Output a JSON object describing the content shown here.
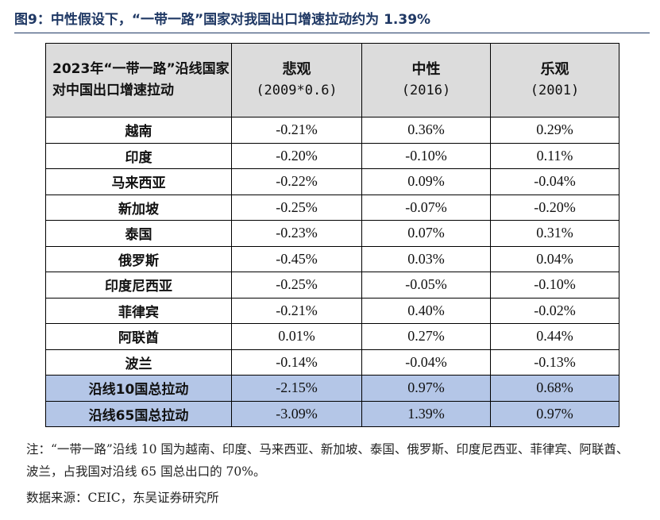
{
  "figure": {
    "title": "图9：中性假设下，“一带一路”国家对我国出口增速拉动约为 1.39%"
  },
  "table": {
    "header": {
      "col0": "2023年“一带一路”沿线国家对中国出口增速拉动",
      "col1_name": "悲观",
      "col1_sub": "(2009*0.6)",
      "col2_name": "中性",
      "col2_sub": "(2016)",
      "col3_name": "乐观",
      "col3_sub": "(2001)"
    },
    "rows": [
      {
        "country": "越南",
        "pessimistic": "-0.21%",
        "neutral": "0.36%",
        "optimistic": "0.29%"
      },
      {
        "country": "印度",
        "pessimistic": "-0.20%",
        "neutral": "-0.10%",
        "optimistic": "0.11%"
      },
      {
        "country": "马来西亚",
        "pessimistic": "-0.22%",
        "neutral": "0.09%",
        "optimistic": "-0.04%"
      },
      {
        "country": "新加坡",
        "pessimistic": "-0.25%",
        "neutral": "-0.07%",
        "optimistic": "-0.20%"
      },
      {
        "country": "泰国",
        "pessimistic": "-0.23%",
        "neutral": "0.07%",
        "optimistic": "0.31%"
      },
      {
        "country": "俄罗斯",
        "pessimistic": "-0.45%",
        "neutral": "0.03%",
        "optimistic": "0.04%"
      },
      {
        "country": "印度尼西亚",
        "pessimistic": "-0.25%",
        "neutral": "-0.05%",
        "optimistic": "-0.10%"
      },
      {
        "country": "菲律宾",
        "pessimistic": "-0.21%",
        "neutral": "0.40%",
        "optimistic": "-0.02%"
      },
      {
        "country": "阿联酋",
        "pessimistic": "0.01%",
        "neutral": "0.27%",
        "optimistic": "0.44%"
      },
      {
        "country": "波兰",
        "pessimistic": "-0.14%",
        "neutral": "-0.04%",
        "optimistic": "-0.13%"
      }
    ],
    "summary": [
      {
        "label": "沿线10国总拉动",
        "pessimistic": "-2.15%",
        "neutral": "0.97%",
        "optimistic": "0.68%"
      },
      {
        "label": "沿线65国总拉动",
        "pessimistic": "-3.09%",
        "neutral": "1.39%",
        "optimistic": "0.97%"
      }
    ],
    "summary_color": "#b4c6e7",
    "header_color": "#dcdcdc"
  },
  "note": "注：“一带一路”沿线 10 国为越南、印度、马来西亚、新加坡、泰国、俄罗斯、印度尼西亚、菲律宾、阿联酋、波兰，占我国对沿线 65 国总出口的 70%。",
  "source": "数据来源：CEIC，东吴证券研究所"
}
